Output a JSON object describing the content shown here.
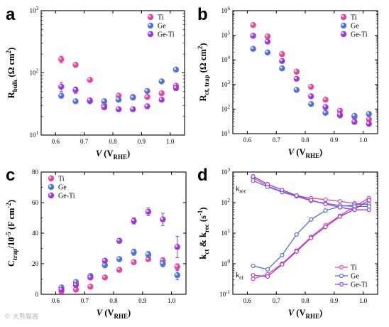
{
  "figure": {
    "watermark": "© 大熊猫酱",
    "colors": {
      "Ti": "#e8459d",
      "Ge": "#4f71d9",
      "Ge-Ti": "#9b38e0"
    }
  },
  "chart_data": [
    {
      "id": "a",
      "panel_label": "a",
      "type": "scatter",
      "xlim": [
        0.55,
        1.05
      ],
      "xticks": [
        0.6,
        0.7,
        0.8,
        0.9,
        1.0
      ],
      "ylog": true,
      "ylim": [
        10,
        1000
      ],
      "yticks": [
        10,
        100,
        1000
      ],
      "ytick_labels": [
        "10^1",
        "10^2",
        "10^3"
      ],
      "ylabel": {
        "main": "R",
        "sub": "bulk",
        "unit": " (Ω cm",
        "sup": "2",
        "close": ")"
      },
      "xlabel": {
        "main": "V",
        "open": " (V",
        "sub": "RHE",
        "close": ")"
      },
      "legend": "top-right",
      "legend_pos": "top-right",
      "series": [
        {
          "name": "Ti",
          "x": [
            0.62,
            0.67,
            0.72,
            0.77,
            0.82,
            0.87,
            0.92,
            0.97,
            1.02
          ],
          "y": [
            165,
            135,
            77,
            30,
            43,
            41,
            41,
            47,
            62
          ],
          "err": [
            20,
            12,
            4,
            2,
            3,
            2,
            2,
            3,
            6
          ]
        },
        {
          "name": "Ge",
          "x": [
            0.62,
            0.67,
            0.72,
            0.77,
            0.82,
            0.87,
            0.92,
            0.97,
            1.02
          ],
          "y": [
            43,
            35,
            35,
            35,
            37,
            40,
            51,
            73,
            113
          ],
          "err": [
            4,
            2,
            2,
            2,
            2,
            2,
            3,
            4,
            6
          ]
        },
        {
          "name": "Ge-Ti",
          "x": [
            0.62,
            0.67,
            0.72,
            0.77,
            0.82,
            0.87,
            0.92,
            0.97,
            1.02
          ],
          "y": [
            60,
            53,
            36,
            28,
            26,
            26,
            29,
            37,
            57
          ],
          "err": [
            10,
            6,
            3,
            2,
            2,
            2,
            2,
            3,
            5
          ]
        }
      ]
    },
    {
      "id": "b",
      "panel_label": "b",
      "type": "scatter",
      "xlim": [
        0.55,
        1.05
      ],
      "xticks": [
        0.6,
        0.7,
        0.8,
        0.9,
        1.0
      ],
      "ylog": true,
      "ylim": [
        10,
        1000000
      ],
      "yticks": [
        10,
        100,
        1000,
        10000,
        100000,
        1000000
      ],
      "ytick_labels": [
        "10^1",
        "10^2",
        "10^3",
        "10^4",
        "10^5",
        "10^6"
      ],
      "ylabel": {
        "main": "R",
        "sub": "ct, trap",
        "unit": " (Ω cm",
        "sup": "2",
        "close": ")"
      },
      "xlabel": {
        "main": "V",
        "open": " (V",
        "sub": "RHE",
        "close": ")"
      },
      "legend": "top-right",
      "legend_pos": "top-right",
      "series": [
        {
          "name": "Ti",
          "x": [
            0.62,
            0.67,
            0.72,
            0.77,
            0.82,
            0.87,
            0.92,
            0.97,
            1.02
          ],
          "y": [
            260000,
            90000,
            17000,
            3300,
            800,
            240,
            85,
            48,
            38
          ]
        },
        {
          "name": "Ge",
          "x": [
            0.62,
            0.67,
            0.72,
            0.77,
            0.82,
            0.87,
            0.92,
            0.97,
            1.02
          ],
          "y": [
            28000,
            20000,
            4500,
            600,
            160,
            70,
            55,
            53,
            63
          ]
        },
        {
          "name": "Ge-Ti",
          "x": [
            0.62,
            0.67,
            0.72,
            0.77,
            0.82,
            0.87,
            0.92,
            0.97,
            1.02
          ],
          "y": [
            95000,
            55000,
            9000,
            1700,
            330,
            120,
            58,
            30,
            25
          ]
        }
      ]
    },
    {
      "id": "c",
      "panel_label": "c",
      "type": "scatter",
      "xlim": [
        0.55,
        1.05
      ],
      "xticks": [
        0.6,
        0.7,
        0.8,
        0.9,
        1.0
      ],
      "ylog": false,
      "ylim": [
        0,
        80
      ],
      "yticks": [
        0,
        20,
        40,
        60,
        80
      ],
      "ytick_labels": [
        "0",
        "20",
        "40",
        "60",
        "80"
      ],
      "ylabel": {
        "main": "C",
        "sub": "trap",
        "unit": "/10",
        "sup": "-5",
        "close": " (F cm",
        "sup2": "-2",
        "close2": ")"
      },
      "xlabel": {
        "main": "V",
        "open": " (V",
        "sub": "RHE",
        "close": ")"
      },
      "legend": "top-left",
      "legend_pos": "top-left",
      "series": [
        {
          "name": "Ti",
          "x": [
            0.62,
            0.67,
            0.72,
            0.77,
            0.82,
            0.87,
            0.92,
            0.97,
            1.02
          ],
          "y": [
            2,
            3,
            5,
            11,
            16,
            21,
            23,
            22,
            18
          ],
          "err": [
            0.5,
            0.5,
            0.5,
            1,
            1,
            1,
            1.5,
            2,
            2
          ]
        },
        {
          "name": "Ge",
          "x": [
            0.62,
            0.67,
            0.72,
            0.77,
            0.82,
            0.87,
            0.92,
            0.97,
            1.02
          ],
          "y": [
            4.5,
            8,
            12,
            19,
            23,
            27.5,
            26,
            20,
            12.5
          ],
          "err": [
            0.5,
            0.8,
            1,
            1,
            1.5,
            2,
            2,
            2,
            3
          ]
        },
        {
          "name": "Ge-Ti",
          "x": [
            0.62,
            0.67,
            0.72,
            0.77,
            0.82,
            0.87,
            0.92,
            0.97,
            1.02
          ],
          "y": [
            3,
            6,
            11,
            22,
            35,
            48,
            54,
            49,
            31
          ],
          "err": [
            0.5,
            0.5,
            1,
            1,
            1.5,
            2,
            2.5,
            4,
            7
          ]
        }
      ]
    },
    {
      "id": "d",
      "panel_label": "d",
      "type": "line",
      "xlim": [
        0.55,
        1.05
      ],
      "xticks": [
        0.6,
        0.7,
        0.8,
        0.9,
        1.0
      ],
      "ylog": true,
      "ylim": [
        0.1,
        1000
      ],
      "yticks": [
        0.1,
        1,
        10,
        100,
        1000
      ],
      "ytick_labels": [
        "10^-1",
        "10^0",
        "10^1",
        "10^2",
        "10^3"
      ],
      "ylabel": {
        "main": "k",
        "sub": "ct",
        "mid": " & k",
        "sub2": "rec",
        "unit": " (s",
        "sup": "-1",
        "close": ")"
      },
      "xlabel": {
        "main": "V",
        "open": " (V",
        "sub": "RHE",
        "close": ")"
      },
      "legend": "bottom-right",
      "legend_pos": "bottom-right",
      "annotations": [
        {
          "main": "k",
          "sub": "rec",
          "x": 0.6,
          "y": 300
        },
        {
          "main": "k",
          "sub": "ct",
          "x": 0.6,
          "y": 0.45
        }
      ],
      "series": [
        {
          "name": "Ti",
          "x": [
            0.62,
            0.67,
            0.72,
            0.77,
            0.82,
            0.87,
            0.92,
            0.97,
            1.02
          ],
          "ct": [
            0.32,
            0.45,
            1.0,
            2.7,
            7.5,
            18,
            37,
            75,
            140
          ],
          "rec": [
            650,
            350,
            230,
            170,
            140,
            125,
            110,
            95,
            85
          ]
        },
        {
          "name": "Ge",
          "x": [
            0.62,
            0.67,
            0.72,
            0.77,
            0.82,
            0.87,
            0.92,
            0.97,
            1.02
          ],
          "ct": [
            0.85,
            0.65,
            1.9,
            9,
            28,
            55,
            75,
            85,
            90
          ],
          "rec": [
            520,
            330,
            220,
            160,
            115,
            95,
            80,
            75,
            75
          ]
        },
        {
          "name": "Ge-Ti",
          "x": [
            0.62,
            0.67,
            0.72,
            0.77,
            0.82,
            0.87,
            0.92,
            0.97,
            1.02
          ],
          "ct": [
            0.42,
            0.38,
            0.95,
            2.5,
            7,
            16,
            35,
            60,
            120
          ],
          "rec": [
            720,
            400,
            260,
            170,
            120,
            90,
            70,
            58,
            58
          ]
        }
      ]
    }
  ]
}
